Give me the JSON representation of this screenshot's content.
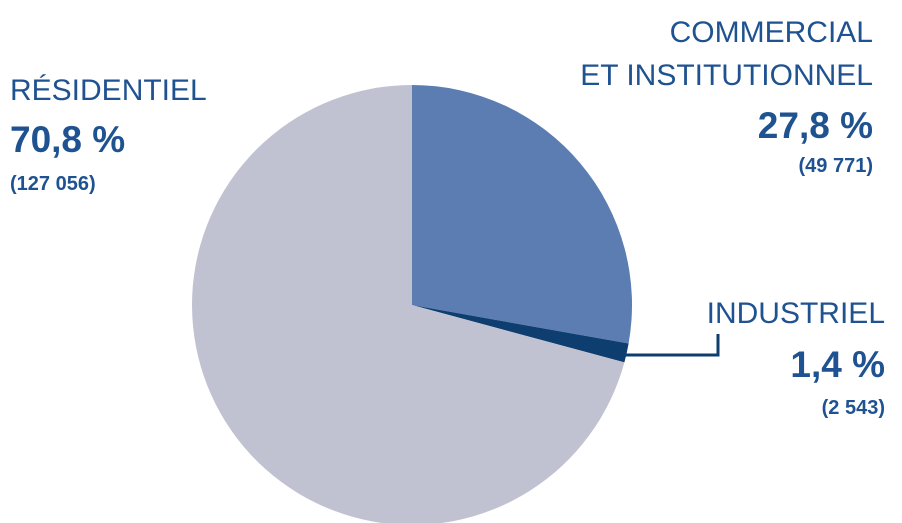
{
  "chart_data": {
    "type": "pie",
    "categories": [
      [
        "COMMERCIAL",
        "ET INSTITUTIONNEL"
      ],
      [
        "INDUSTRIEL"
      ],
      [
        "RÉSIDENTIEL"
      ]
    ],
    "values": [
      27.8,
      1.4,
      70.8
    ],
    "value_labels": [
      "27,8 %",
      "1,4 %",
      "70,8 %"
    ],
    "count_labels": [
      "(49 771)",
      "(2 543)",
      "(127 056)"
    ],
    "colors": [
      "#5b7db2",
      "#0e3d6f",
      "#c1c2d1"
    ]
  }
}
